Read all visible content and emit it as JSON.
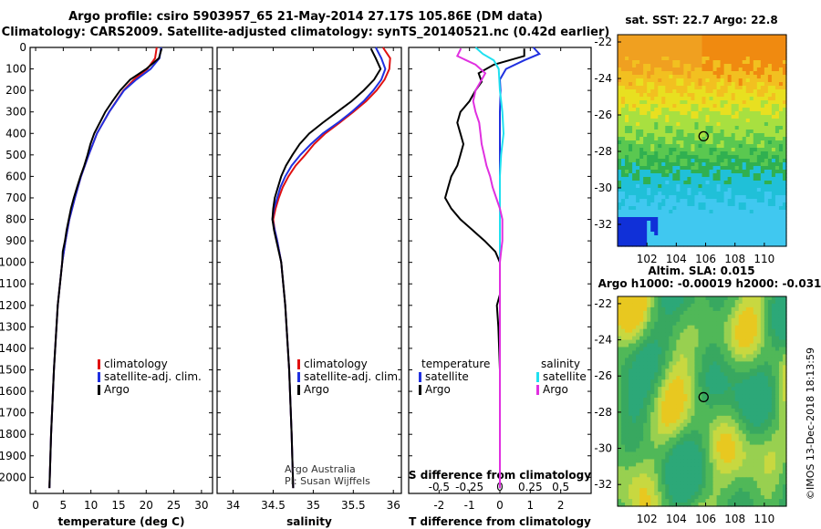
{
  "title_line1": "Argo profile: csiro 5903957_65 21-May-2014 27.17S 105.86E (DM data)",
  "title_line2": "Climatology: CARS2009. Satellite-adjusted climatology: synTS_20140521.nc (0.42d earlier)",
  "colors": {
    "climatology": "#e01010",
    "satellite_adj": "#2030e0",
    "argo": "#000000",
    "sat_T": "#000000",
    "sat_S": "#20e0f0",
    "argo_S": "#e030e0",
    "marker": "#000000"
  },
  "chart_data": [
    {
      "type": "line",
      "id": "temperature",
      "xlabel": "temperature (deg C)",
      "xlim": [
        -1,
        32
      ],
      "ylim": [
        0,
        2075
      ],
      "xticks": [
        0,
        5,
        10,
        15,
        20,
        25,
        30
      ],
      "yticks": [
        0,
        100,
        200,
        300,
        400,
        500,
        600,
        700,
        800,
        900,
        1000,
        1100,
        1200,
        1300,
        1400,
        1500,
        1600,
        1700,
        1800,
        1900,
        2000
      ],
      "legend": [
        "climatology",
        "satellite-adj. clim.",
        "Argo"
      ],
      "series": [
        {
          "name": "climatology",
          "depth": [
            0,
            50,
            100,
            150,
            200,
            300,
            400,
            500,
            600,
            700,
            800,
            900,
            1000,
            1200,
            1500,
            1800,
            2050
          ],
          "values": [
            21.9,
            21.6,
            20.2,
            17.8,
            15.9,
            13.3,
            11.1,
            9.6,
            8.2,
            7.1,
            6.1,
            5.4,
            4.8,
            4.0,
            3.3,
            2.8,
            2.5
          ]
        },
        {
          "name": "satellite-adj. clim.",
          "depth": [
            0,
            50,
            100,
            150,
            200,
            300,
            400,
            500,
            600,
            700,
            800,
            900,
            1000,
            1200,
            1500,
            1800,
            2050
          ],
          "values": [
            22.7,
            22.4,
            20.8,
            18.2,
            16.0,
            13.3,
            11.1,
            9.6,
            8.2,
            7.1,
            6.1,
            5.4,
            4.8,
            4.0,
            3.3,
            2.8,
            2.5
          ]
        },
        {
          "name": "Argo",
          "depth": [
            5,
            50,
            100,
            150,
            200,
            250,
            300,
            350,
            400,
            450,
            500,
            550,
            600,
            650,
            700,
            750,
            800,
            850,
            900,
            950,
            1000,
            1200,
            1500,
            1800,
            2050
          ],
          "values": [
            22.8,
            22.3,
            20.0,
            17.1,
            15.3,
            13.9,
            12.6,
            11.6,
            10.6,
            9.9,
            9.4,
            8.8,
            8.1,
            7.5,
            6.9,
            6.4,
            6.0,
            5.6,
            5.3,
            4.9,
            4.8,
            4.0,
            3.3,
            2.8,
            2.5
          ]
        }
      ]
    },
    {
      "type": "line",
      "id": "salinity",
      "xlabel": "salinity",
      "xlim": [
        33.8,
        36.1
      ],
      "ylim": [
        0,
        2075
      ],
      "xticks": [
        34,
        34.5,
        35,
        35.5,
        36
      ],
      "legend": [
        "climatology",
        "satellite-adj. clim.",
        "Argo"
      ],
      "annotation_lines": [
        "Argo Australia",
        "PI: Susan Wijffels"
      ],
      "series": [
        {
          "name": "climatology",
          "depth": [
            0,
            50,
            100,
            150,
            200,
            250,
            300,
            350,
            400,
            450,
            500,
            550,
            600,
            650,
            700,
            750,
            800,
            850,
            900,
            1000,
            1200,
            1500,
            1800,
            2050
          ],
          "values": [
            35.87,
            35.96,
            35.95,
            35.89,
            35.79,
            35.66,
            35.5,
            35.33,
            35.15,
            35.01,
            34.9,
            34.78,
            34.69,
            34.62,
            34.57,
            34.53,
            34.5,
            34.52,
            34.55,
            34.6,
            34.65,
            34.7,
            34.73,
            34.75
          ]
        },
        {
          "name": "satellite-adj. clim.",
          "depth": [
            0,
            50,
            100,
            150,
            200,
            250,
            300,
            350,
            400,
            450,
            500,
            550,
            600,
            650,
            700,
            750,
            800,
            850,
            900,
            1000,
            1200,
            1500,
            1800,
            2050
          ],
          "values": [
            35.78,
            35.85,
            35.9,
            35.85,
            35.75,
            35.63,
            35.48,
            35.31,
            35.12,
            34.97,
            34.84,
            34.73,
            34.65,
            34.59,
            34.55,
            34.51,
            34.49,
            34.52,
            34.55,
            34.6,
            34.65,
            34.7,
            34.73,
            34.75
          ]
        },
        {
          "name": "Argo",
          "depth": [
            5,
            50,
            100,
            150,
            200,
            250,
            300,
            350,
            400,
            450,
            500,
            550,
            600,
            650,
            700,
            750,
            800,
            850,
            900,
            1000,
            1200,
            1500,
            1800,
            2050
          ],
          "values": [
            35.72,
            35.78,
            35.84,
            35.76,
            35.63,
            35.48,
            35.3,
            35.12,
            34.95,
            34.83,
            34.74,
            34.66,
            34.6,
            34.56,
            34.52,
            34.5,
            34.49,
            34.51,
            34.54,
            34.6,
            34.65,
            34.7,
            34.73,
            34.75
          ]
        }
      ]
    },
    {
      "type": "line",
      "id": "differences",
      "xlabel": "T difference from climatology",
      "xlabel_top": "S difference from climatology",
      "xlim": [
        -3,
        3
      ],
      "ylim": [
        0,
        2075
      ],
      "xticks_T": [
        -2,
        -1,
        0,
        1,
        2
      ],
      "xticks_S_labels": [
        "-0.5",
        "-0.25",
        "0",
        "0.25",
        "0.5"
      ],
      "legend_T_title": "temperature",
      "legend_S_title": "salinity",
      "legend": [
        "satellite",
        "Argo",
        "satellite",
        "Argo"
      ],
      "series": [
        {
          "name": "T satellite",
          "depth": [
            0,
            30,
            60,
            100,
            150,
            200,
            300,
            400,
            500,
            700,
            900,
            1100,
            1300,
            1500,
            1800,
            2050
          ],
          "values": [
            1.1,
            1.3,
            0.8,
            0.2,
            0.0,
            0.02,
            0.0,
            0.0,
            0.0,
            0.0,
            0.0,
            0.0,
            0.0,
            0.0,
            0.0,
            0.0
          ]
        },
        {
          "name": "T Argo",
          "depth": [
            5,
            40,
            80,
            120,
            160,
            200,
            250,
            300,
            350,
            400,
            450,
            500,
            550,
            600,
            650,
            700,
            750,
            800,
            850,
            900,
            950,
            1000,
            1050,
            1100,
            1150,
            1200,
            1300,
            1500,
            1700,
            1900,
            2050
          ],
          "values": [
            0.8,
            0.8,
            -0.2,
            -0.7,
            -0.6,
            -0.8,
            -1.0,
            -1.3,
            -1.4,
            -1.3,
            -1.2,
            -1.3,
            -1.4,
            -1.6,
            -1.7,
            -1.8,
            -1.6,
            -1.3,
            -0.9,
            -0.5,
            -0.15,
            0.0,
            0.0,
            0.0,
            0.0,
            -0.1,
            -0.05,
            0.0,
            0.0,
            0.0,
            0.0
          ]
        },
        {
          "name": "S satellite",
          "depth": [
            0,
            30,
            60,
            100,
            200,
            300,
            400,
            500,
            600,
            800,
            1000,
            1200,
            1500,
            1800,
            2050
          ],
          "values": [
            -0.2,
            -0.14,
            -0.05,
            -0.01,
            0.0,
            0.02,
            0.03,
            0.01,
            0.0,
            0.0,
            0.0,
            0.0,
            0.0,
            0.0,
            0.0
          ]
        },
        {
          "name": "S Argo",
          "depth": [
            5,
            40,
            80,
            120,
            160,
            200,
            250,
            300,
            350,
            400,
            450,
            500,
            550,
            600,
            650,
            700,
            750,
            800,
            850,
            900,
            950,
            1000,
            1050,
            1100,
            1200,
            1300,
            1400,
            1600,
            1900,
            2050
          ],
          "values": [
            -0.32,
            -0.35,
            -0.2,
            -0.12,
            -0.16,
            -0.2,
            -0.22,
            -0.2,
            -0.17,
            -0.16,
            -0.15,
            -0.13,
            -0.11,
            -0.08,
            -0.06,
            -0.03,
            0.0,
            0.02,
            0.02,
            0.02,
            0.01,
            0.0,
            0.0,
            0.0,
            0.0,
            0.0,
            0.0,
            0.0,
            0.0,
            0.0
          ]
        }
      ]
    },
    {
      "type": "heatmap",
      "id": "sst_map",
      "title": "sat. SST: 22.7 Argo: 22.8",
      "x_range": [
        100,
        111.5
      ],
      "y_range": [
        -33.2,
        -21.6
      ],
      "xticks": [
        102,
        104,
        106,
        108,
        110
      ],
      "yticks": [
        -22,
        -24,
        -26,
        -28,
        -30,
        -32
      ],
      "argo_position": [
        105.86,
        -27.17
      ]
    },
    {
      "type": "heatmap",
      "id": "sla_map",
      "title_line1": "Altim. SLA: 0.015",
      "title_line2": "Argo h1000: -0.00019 h2000: -0.031",
      "x_range": [
        100,
        111.5
      ],
      "y_range": [
        -33.2,
        -21.6
      ],
      "xticks": [
        102,
        104,
        106,
        108,
        110
      ],
      "yticks": [
        -22,
        -24,
        -26,
        -28,
        -30,
        -32
      ],
      "argo_position": [
        105.86,
        -27.17
      ]
    }
  ],
  "credit": "©IMOS 13-Dec-2018 18:13:59"
}
